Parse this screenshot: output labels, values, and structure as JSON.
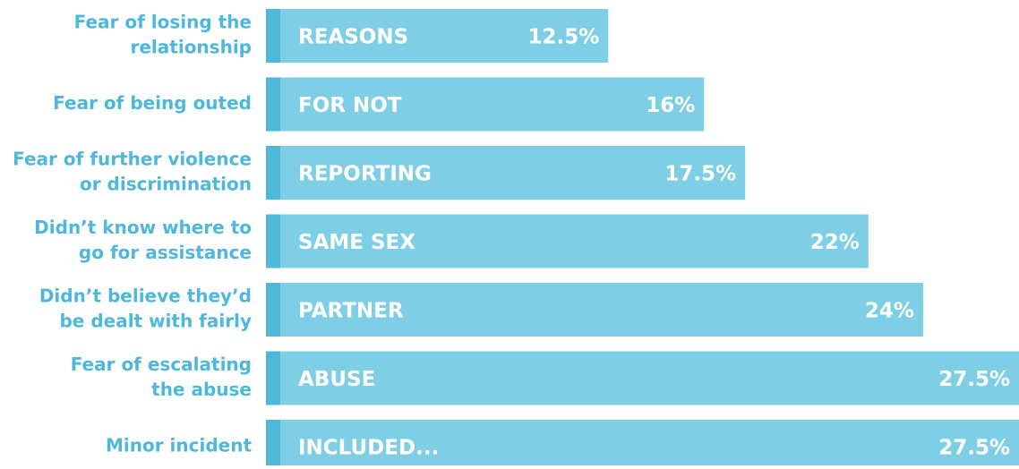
{
  "chart_data": {
    "type": "bar",
    "orientation": "horizontal",
    "categories": [
      [
        "Fear of losing the",
        "relationship"
      ],
      [
        "Fear of being outed"
      ],
      [
        "Fear of further violence",
        "or discrimination"
      ],
      [
        "Didn’t know where to",
        "go for assistance"
      ],
      [
        "Didn’t believe they’d",
        "be dealt with fairly"
      ],
      [
        "Fear of escalating",
        "the abuse"
      ],
      [
        "Minor incident"
      ]
    ],
    "values": [
      12.5,
      16,
      17.5,
      22,
      24,
      27.5,
      27.5
    ],
    "value_labels": [
      "12.5%",
      "16%",
      "17.5%",
      "22%",
      "24%",
      "27.5%",
      "27.5%"
    ],
    "bar_text": [
      "REASONS",
      "FOR NOT",
      "REPORTING",
      "SAME SEX",
      "PARTNER",
      "ABUSE",
      "INCLUDED..."
    ],
    "color": "#7ecfe6",
    "accent_color": "#4fb8d9",
    "xlim": [
      0,
      27.5
    ]
  }
}
